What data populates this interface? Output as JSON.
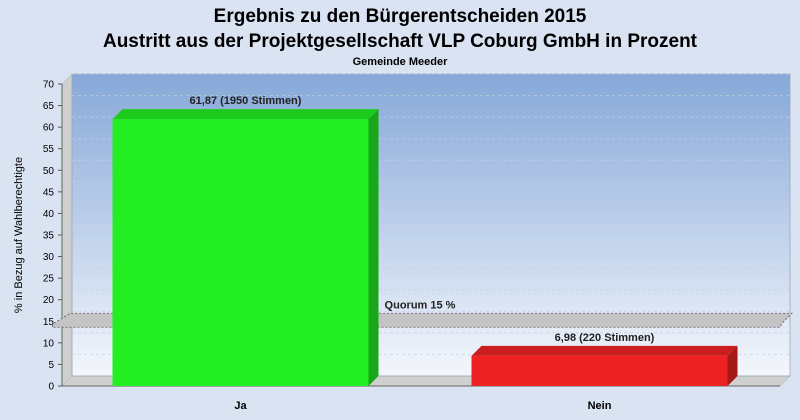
{
  "chart_data": {
    "type": "bar",
    "title": "Ergebnis zu den Bürgerentscheiden 2015",
    "title_line2": "Austritt aus der Projektgesellschaft VLP Coburg GmbH in Prozent",
    "subtitle": "Gemeinde Meeder",
    "ylabel": "% in Bezug auf Wahlberechtigte",
    "xlabel": "",
    "ylim": [
      0,
      70
    ],
    "yticks": [
      0,
      5,
      10,
      15,
      20,
      25,
      30,
      35,
      40,
      45,
      50,
      55,
      60,
      65,
      70
    ],
    "categories": [
      "Ja",
      "Nein"
    ],
    "values": [
      61.87,
      6.98
    ],
    "data_labels": [
      "61,87 (1950 Stimmen)",
      "6,98 (220 Stimmen)"
    ],
    "bar_colors": [
      "#22ee22",
      "#ee2222"
    ],
    "reference_line": {
      "value": 15,
      "label": "Quorum 15 %"
    },
    "grid": true,
    "legend": "none"
  }
}
